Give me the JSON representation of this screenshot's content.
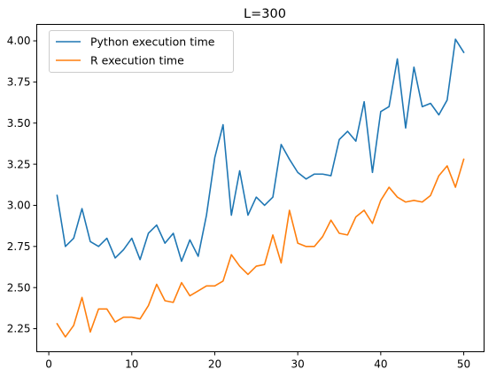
{
  "chart_data": {
    "type": "line",
    "title": "L=300",
    "xlabel": "",
    "ylabel": "",
    "xlim": [
      -1.45,
      52.45
    ],
    "ylim": [
      2.11,
      4.1
    ],
    "xticks": [
      0,
      10,
      20,
      30,
      40,
      50
    ],
    "xtick_labels": [
      "0",
      "10",
      "20",
      "30",
      "40",
      "50"
    ],
    "yticks": [
      2.25,
      2.5,
      2.75,
      3.0,
      3.25,
      3.5,
      3.75,
      4.0
    ],
    "ytick_labels": [
      "2.25",
      "2.50",
      "2.75",
      "3.00",
      "3.25",
      "3.50",
      "3.75",
      "4.00"
    ],
    "grid": false,
    "legend_position": "top-left",
    "x": [
      1,
      2,
      3,
      4,
      5,
      6,
      7,
      8,
      9,
      10,
      11,
      12,
      13,
      14,
      15,
      16,
      17,
      18,
      19,
      20,
      21,
      22,
      23,
      24,
      25,
      26,
      27,
      28,
      29,
      30,
      31,
      32,
      33,
      34,
      35,
      36,
      37,
      38,
      39,
      40,
      41,
      42,
      43,
      44,
      45,
      46,
      47,
      48,
      49,
      50
    ],
    "series": [
      {
        "name": "Python execution time",
        "color": "#1f77b4",
        "values": [
          3.06,
          2.75,
          2.8,
          2.98,
          2.78,
          2.75,
          2.8,
          2.68,
          2.73,
          2.8,
          2.67,
          2.83,
          2.88,
          2.77,
          2.83,
          2.66,
          2.79,
          2.69,
          2.94,
          3.29,
          3.49,
          2.94,
          3.21,
          2.94,
          3.05,
          3.0,
          3.05,
          3.37,
          3.28,
          3.2,
          3.16,
          3.19,
          3.19,
          3.18,
          3.4,
          3.45,
          3.39,
          3.63,
          3.2,
          3.57,
          3.6,
          3.89,
          3.47,
          3.84,
          3.6,
          3.62,
          3.55,
          3.64,
          4.01,
          3.93
        ]
      },
      {
        "name": "R execution time",
        "color": "#ff7f0e",
        "values": [
          2.28,
          2.2,
          2.27,
          2.44,
          2.23,
          2.37,
          2.37,
          2.29,
          2.32,
          2.32,
          2.31,
          2.39,
          2.52,
          2.42,
          2.41,
          2.53,
          2.45,
          2.48,
          2.51,
          2.51,
          2.54,
          2.7,
          2.63,
          2.58,
          2.63,
          2.64,
          2.82,
          2.65,
          2.97,
          2.77,
          2.75,
          2.75,
          2.81,
          2.91,
          2.83,
          2.82,
          2.93,
          2.97,
          2.89,
          3.03,
          3.11,
          3.05,
          3.02,
          3.03,
          3.02,
          3.06,
          3.18,
          3.24,
          3.11,
          3.28
        ]
      }
    ]
  }
}
